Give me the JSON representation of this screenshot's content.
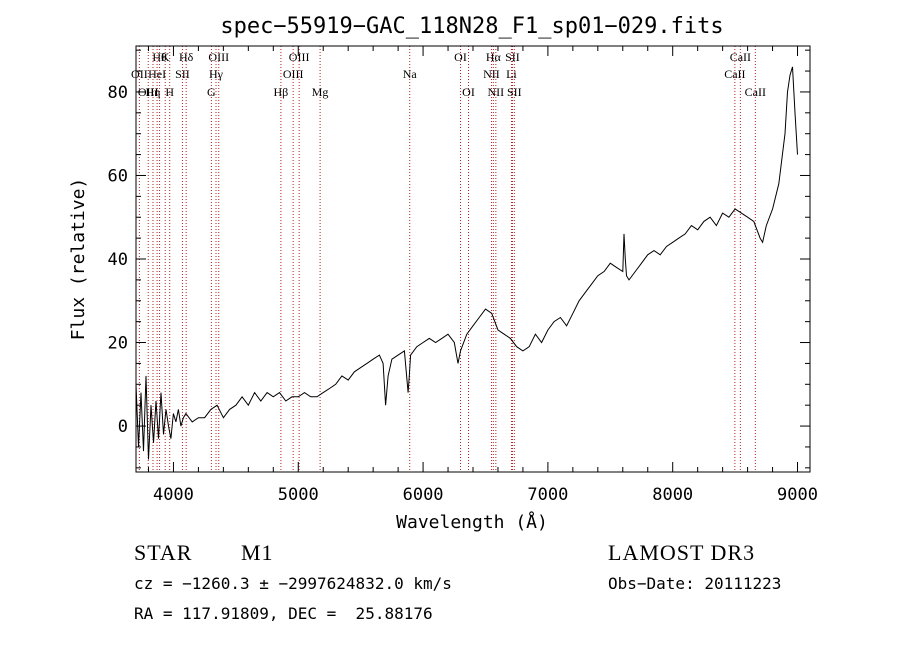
{
  "chart_data": {
    "type": "line",
    "title": "spec−55919−GAC_118N28_F1_sp01−029.fits",
    "xlabel": "Wavelength (Å)",
    "ylabel": "Flux (relative)",
    "xlim": [
      3700,
      9100
    ],
    "ylim": [
      -11,
      91
    ],
    "xticks": [
      4000,
      5000,
      6000,
      7000,
      8000,
      9000
    ],
    "xtick_labels": [
      "4000",
      "5000",
      "6000",
      "7000",
      "8000",
      "9000"
    ],
    "yticks": [
      0,
      20,
      40,
      60,
      80
    ],
    "ytick_labels": [
      "0",
      "20",
      "40",
      "60",
      "80"
    ],
    "line_color": "#000000",
    "marker_color": "#b22222",
    "series": [
      {
        "name": "flux",
        "x": [
          3700,
          3720,
          3740,
          3760,
          3780,
          3800,
          3820,
          3840,
          3860,
          3880,
          3900,
          3920,
          3940,
          3960,
          3980,
          4000,
          4020,
          4040,
          4060,
          4080,
          4100,
          4150,
          4200,
          4250,
          4300,
          4350,
          4400,
          4450,
          4500,
          4550,
          4600,
          4650,
          4700,
          4750,
          4800,
          4850,
          4900,
          4950,
          5000,
          5050,
          5100,
          5150,
          5200,
          5250,
          5300,
          5350,
          5400,
          5450,
          5500,
          5550,
          5600,
          5650,
          5680,
          5700,
          5720,
          5750,
          5800,
          5850,
          5880,
          5890,
          5900,
          5950,
          6000,
          6050,
          6100,
          6150,
          6200,
          6250,
          6280,
          6300,
          6350,
          6400,
          6450,
          6500,
          6550,
          6600,
          6650,
          6700,
          6750,
          6800,
          6850,
          6900,
          6950,
          7000,
          7050,
          7100,
          7150,
          7200,
          7250,
          7300,
          7350,
          7400,
          7450,
          7500,
          7550,
          7600,
          7610,
          7620,
          7630,
          7650,
          7700,
          7750,
          7800,
          7850,
          7900,
          7950,
          8000,
          8050,
          8100,
          8150,
          8200,
          8250,
          8300,
          8350,
          8400,
          8450,
          8500,
          8550,
          8600,
          8650,
          8700,
          8720,
          8750,
          8800,
          8850,
          8900,
          8920,
          8940,
          8960,
          8980,
          9000
        ],
        "y": [
          10,
          -5,
          8,
          -6,
          12,
          -8,
          5,
          -4,
          6,
          -3,
          8,
          -2,
          4,
          0,
          -3,
          3,
          1,
          4,
          0,
          2,
          3,
          1,
          2,
          2,
          4,
          5,
          2,
          4,
          5,
          7,
          5,
          8,
          6,
          8,
          7,
          8,
          6,
          7,
          7,
          8,
          7,
          7,
          8,
          9,
          10,
          12,
          11,
          13,
          14,
          15,
          16,
          17,
          15,
          5,
          12,
          16,
          17,
          18,
          8,
          12,
          17,
          19,
          20,
          21,
          20,
          21,
          22,
          20,
          15,
          18,
          22,
          24,
          26,
          28,
          27,
          23,
          22,
          21,
          19,
          18,
          19,
          22,
          20,
          23,
          25,
          26,
          24,
          27,
          30,
          32,
          34,
          36,
          37,
          39,
          38,
          37,
          46,
          40,
          36,
          35,
          37,
          39,
          41,
          42,
          41,
          43,
          44,
          45,
          46,
          48,
          47,
          49,
          50,
          48,
          51,
          50,
          52,
          51,
          50,
          49,
          45,
          44,
          48,
          52,
          58,
          70,
          80,
          84,
          86,
          75,
          65
        ]
      }
    ],
    "line_markers": [
      {
        "x": 3727,
        "label": "OII",
        "row": 2
      },
      {
        "x": 3798,
        "label": "OIII",
        "row": 3
      },
      {
        "x": 3836,
        "label": "Hη",
        "row": 3
      },
      {
        "x": 3869,
        "label": "HeI",
        "row": 2
      },
      {
        "x": 3889,
        "label": "Hθ",
        "row": 1
      },
      {
        "x": 3934,
        "label": "K",
        "row": 1
      },
      {
        "x": 3970,
        "label": "H",
        "row": 3
      },
      {
        "x": 4072,
        "label": "SII",
        "row": 2
      },
      {
        "x": 4102,
        "label": "Hδ",
        "row": 1
      },
      {
        "x": 4304,
        "label": "G",
        "row": 3
      },
      {
        "x": 4341,
        "label": "Hγ",
        "row": 2
      },
      {
        "x": 4363,
        "label": "OIII",
        "row": 1
      },
      {
        "x": 4861,
        "label": "Hβ",
        "row": 3
      },
      {
        "x": 4959,
        "label": "OIII",
        "row": 2
      },
      {
        "x": 5007,
        "label": "OIII",
        "row": 1
      },
      {
        "x": 5175,
        "label": "Mg",
        "row": 3
      },
      {
        "x": 5893,
        "label": "Na",
        "row": 2
      },
      {
        "x": 6300,
        "label": "OI",
        "row": 1
      },
      {
        "x": 6364,
        "label": "OI",
        "row": 3
      },
      {
        "x": 6548,
        "label": "NII",
        "row": 2
      },
      {
        "x": 6563,
        "label": "Hα",
        "row": 1
      },
      {
        "x": 6583,
        "label": "NII",
        "row": 3
      },
      {
        "x": 6708,
        "label": "Li",
        "row": 2
      },
      {
        "x": 6716,
        "label": "SII",
        "row": 1
      },
      {
        "x": 6731,
        "label": "SII",
        "row": 3
      },
      {
        "x": 8498,
        "label": "CaII",
        "row": 2
      },
      {
        "x": 8542,
        "label": "CaII",
        "row": 1
      },
      {
        "x": 8662,
        "label": "CaII",
        "row": 3
      }
    ]
  },
  "info": {
    "object_type": "STAR",
    "subclass": "M1",
    "survey": "LAMOST DR3",
    "cz": "cz = −1260.3 ± −2997624832.0 km/s",
    "obs_date": "Obs−Date: 20111223",
    "coords": "RA = 117.91809, DEC =  25.88176"
  }
}
